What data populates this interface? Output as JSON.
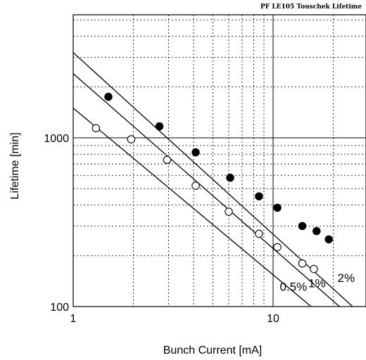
{
  "chart_data": {
    "type": "scatter",
    "title": "PF  LE105  Touschek  Lifetime",
    "xlabel": "Bunch Current [mA]",
    "ylabel": "Lifetime [min]",
    "x_scale": "log",
    "y_scale": "log",
    "xlim": [
      1,
      25
    ],
    "ylim": [
      100,
      7000
    ],
    "x_ticks": [
      {
        "value": 1,
        "label": "1"
      },
      {
        "value": 10,
        "label": "10"
      }
    ],
    "y_ticks": [
      {
        "value": 100,
        "label": "100"
      },
      {
        "value": 1000,
        "label": "1000"
      }
    ],
    "grid": true,
    "series": [
      {
        "marker": "filled-circle",
        "points": [
          {
            "x": 1.5,
            "y": 1750
          },
          {
            "x": 2.7,
            "y": 1170
          },
          {
            "x": 4.1,
            "y": 820
          },
          {
            "x": 6.1,
            "y": 580
          },
          {
            "x": 8.5,
            "y": 450
          },
          {
            "x": 10.5,
            "y": 385
          },
          {
            "x": 14.0,
            "y": 300
          },
          {
            "x": 16.5,
            "y": 280
          },
          {
            "x": 19.0,
            "y": 250
          }
        ]
      },
      {
        "marker": "open-circle",
        "points": [
          {
            "x": 1.3,
            "y": 1140
          },
          {
            "x": 1.95,
            "y": 980
          },
          {
            "x": 2.95,
            "y": 740
          },
          {
            "x": 4.1,
            "y": 520
          },
          {
            "x": 6.0,
            "y": 365
          },
          {
            "x": 8.5,
            "y": 270
          },
          {
            "x": 10.5,
            "y": 225
          },
          {
            "x": 14.0,
            "y": 180
          },
          {
            "x": 16.0,
            "y": 167
          }
        ]
      }
    ],
    "reference_lines": [
      {
        "label": "2%",
        "from": {
          "x": 1,
          "y": 3200
        },
        "to": {
          "x": 25,
          "y": 100
        }
      },
      {
        "label": "1%",
        "from": {
          "x": 1,
          "y": 2400
        },
        "to": {
          "x": 21.5,
          "y": 100
        }
      },
      {
        "label": "0.5%",
        "from": {
          "x": 1,
          "y": 1500
        },
        "to": {
          "x": 15.5,
          "y": 100
        }
      }
    ],
    "line_label_positions": [
      {
        "label": "2%",
        "x": 21,
        "y": 140
      },
      {
        "label": "1%",
        "x": 15.0,
        "y": 130
      },
      {
        "label": "0.5%",
        "x": 10.8,
        "y": 124
      }
    ]
  }
}
